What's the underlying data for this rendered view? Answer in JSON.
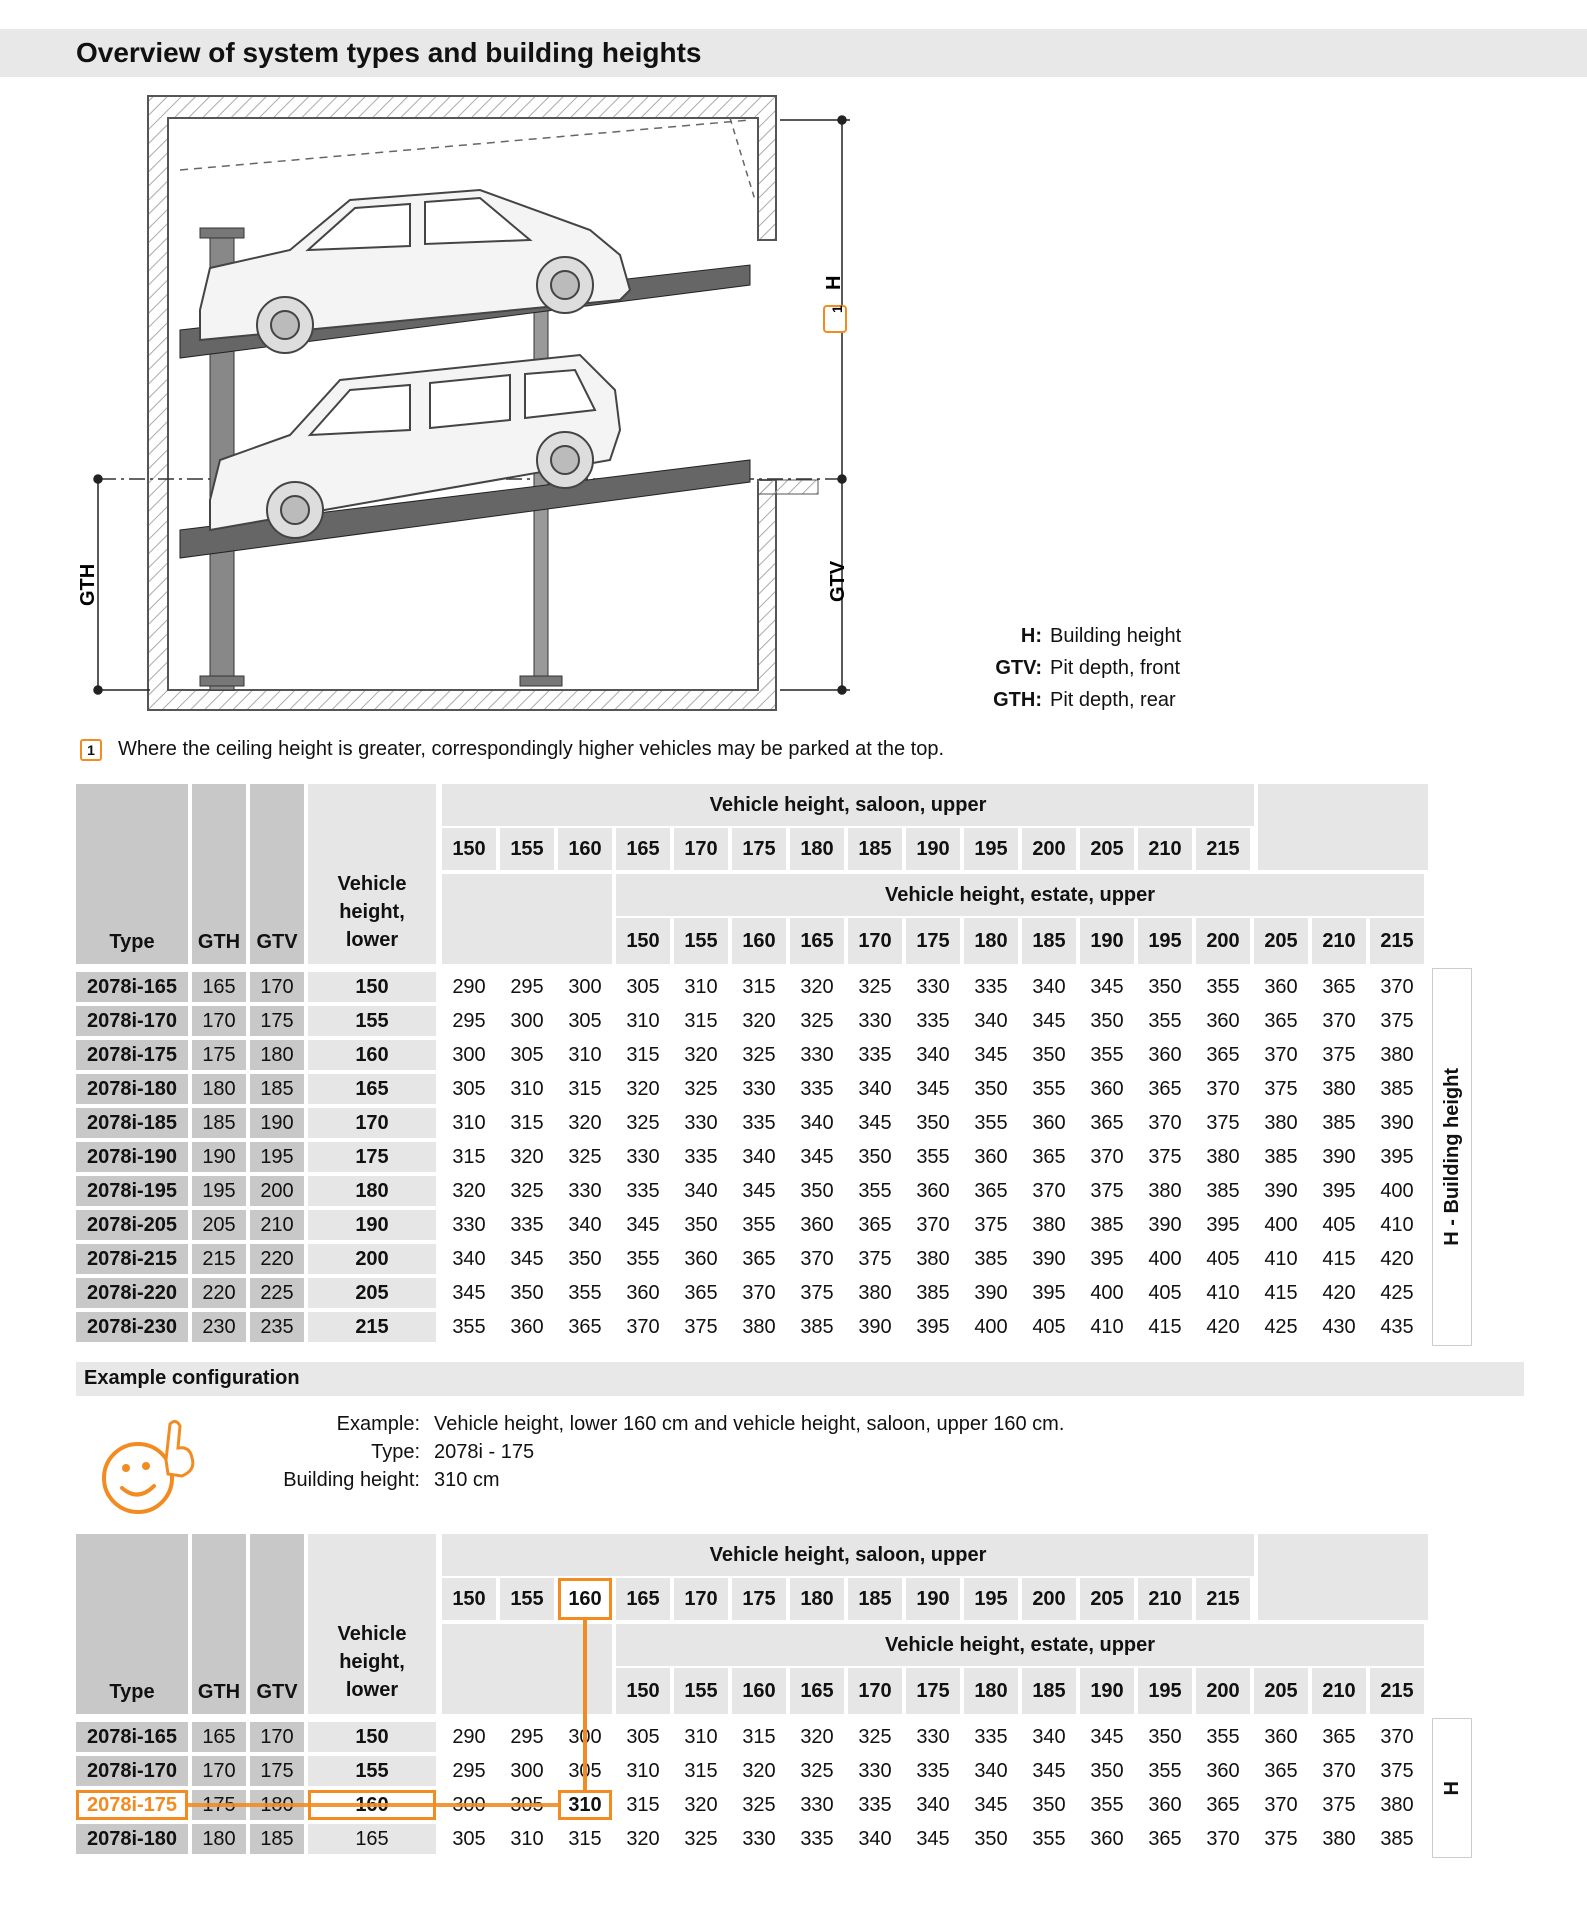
{
  "page_title": "Overview of system types and building heights",
  "diagram": {
    "labels": {
      "h": "H",
      "gtv": "GTV",
      "gth": "GTH",
      "marker": "1"
    }
  },
  "legend": [
    {
      "key": "H:",
      "text": "Building height"
    },
    {
      "key": "GTV:",
      "text": "Pit depth, front"
    },
    {
      "key": "GTH:",
      "text": "Pit depth, rear"
    }
  ],
  "note": {
    "marker": "1",
    "text": "Where the ceiling height is greater, correspondingly higher vehicles may be parked at the top."
  },
  "table1": {
    "headers": {
      "type": "Type",
      "gth": "GTH",
      "gtv": "GTV",
      "lower": "Vehicle height, lower",
      "saloon": "Vehicle height, saloon, upper",
      "estate": "Vehicle height, estate, upper"
    },
    "saloon_cols": [
      "150",
      "155",
      "160",
      "165",
      "170",
      "175",
      "180",
      "185",
      "190",
      "195",
      "200",
      "205",
      "210",
      "215"
    ],
    "estate_cols": [
      "150",
      "155",
      "160",
      "165",
      "170",
      "175",
      "180",
      "185",
      "190",
      "195",
      "200",
      "205",
      "210",
      "215"
    ],
    "side_label": "H - Building height",
    "rows": [
      {
        "type": "2078i-165",
        "gth": "165",
        "gtv": "170",
        "lower": "150",
        "values": [
          "290",
          "295",
          "300",
          "305",
          "310",
          "315",
          "320",
          "325",
          "330",
          "335",
          "340",
          "345",
          "350",
          "355",
          "360",
          "365",
          "370"
        ]
      },
      {
        "type": "2078i-170",
        "gth": "170",
        "gtv": "175",
        "lower": "155",
        "values": [
          "295",
          "300",
          "305",
          "310",
          "315",
          "320",
          "325",
          "330",
          "335",
          "340",
          "345",
          "350",
          "355",
          "360",
          "365",
          "370",
          "375"
        ]
      },
      {
        "type": "2078i-175",
        "gth": "175",
        "gtv": "180",
        "lower": "160",
        "values": [
          "300",
          "305",
          "310",
          "315",
          "320",
          "325",
          "330",
          "335",
          "340",
          "345",
          "350",
          "355",
          "360",
          "365",
          "370",
          "375",
          "380"
        ]
      },
      {
        "type": "2078i-180",
        "gth": "180",
        "gtv": "185",
        "lower": "165",
        "values": [
          "305",
          "310",
          "315",
          "320",
          "325",
          "330",
          "335",
          "340",
          "345",
          "350",
          "355",
          "360",
          "365",
          "370",
          "375",
          "380",
          "385"
        ]
      },
      {
        "type": "2078i-185",
        "gth": "185",
        "gtv": "190",
        "lower": "170",
        "values": [
          "310",
          "315",
          "320",
          "325",
          "330",
          "335",
          "340",
          "345",
          "350",
          "355",
          "360",
          "365",
          "370",
          "375",
          "380",
          "385",
          "390"
        ]
      },
      {
        "type": "2078i-190",
        "gth": "190",
        "gtv": "195",
        "lower": "175",
        "values": [
          "315",
          "320",
          "325",
          "330",
          "335",
          "340",
          "345",
          "350",
          "355",
          "360",
          "365",
          "370",
          "375",
          "380",
          "385",
          "390",
          "395"
        ]
      },
      {
        "type": "2078i-195",
        "gth": "195",
        "gtv": "200",
        "lower": "180",
        "values": [
          "320",
          "325",
          "330",
          "335",
          "340",
          "345",
          "350",
          "355",
          "360",
          "365",
          "370",
          "375",
          "380",
          "385",
          "390",
          "395",
          "400"
        ]
      },
      {
        "type": "2078i-205",
        "gth": "205",
        "gtv": "210",
        "lower": "190",
        "values": [
          "330",
          "335",
          "340",
          "345",
          "350",
          "355",
          "360",
          "365",
          "370",
          "375",
          "380",
          "385",
          "390",
          "395",
          "400",
          "405",
          "410"
        ]
      },
      {
        "type": "2078i-215",
        "gth": "215",
        "gtv": "220",
        "lower": "200",
        "values": [
          "340",
          "345",
          "350",
          "355",
          "360",
          "365",
          "370",
          "375",
          "380",
          "385",
          "390",
          "395",
          "400",
          "405",
          "410",
          "415",
          "420"
        ]
      },
      {
        "type": "2078i-220",
        "gth": "220",
        "gtv": "225",
        "lower": "205",
        "values": [
          "345",
          "350",
          "355",
          "360",
          "365",
          "370",
          "375",
          "380",
          "385",
          "390",
          "395",
          "400",
          "405",
          "410",
          "415",
          "420",
          "425"
        ]
      },
      {
        "type": "2078i-230",
        "gth": "230",
        "gtv": "235",
        "lower": "215",
        "values": [
          "355",
          "360",
          "365",
          "370",
          "375",
          "380",
          "385",
          "390",
          "395",
          "400",
          "405",
          "410",
          "415",
          "420",
          "425",
          "430",
          "435"
        ]
      }
    ]
  },
  "example": {
    "heading": "Example configuration",
    "lines": [
      {
        "key": "Example:",
        "text": "Vehicle height, lower 160 cm and vehicle height, saloon, upper 160 cm."
      },
      {
        "key": "Type:",
        "text": "2078i - 175"
      },
      {
        "key": "Building height:",
        "text": "310 cm"
      }
    ]
  },
  "table2": {
    "side_label": "H",
    "highlight": {
      "row": 2,
      "saloon_col": 2,
      "color": "#f28c22"
    },
    "rows": [
      {
        "type": "2078i-165",
        "gth": "165",
        "gtv": "170",
        "lower": "150",
        "values": [
          "290",
          "295",
          "300",
          "305",
          "310",
          "315",
          "320",
          "325",
          "330",
          "335",
          "340",
          "345",
          "350",
          "355",
          "360",
          "365",
          "370"
        ]
      },
      {
        "type": "2078i-170",
        "gth": "170",
        "gtv": "175",
        "lower": "155",
        "values": [
          "295",
          "300",
          "305",
          "310",
          "315",
          "320",
          "325",
          "330",
          "335",
          "340",
          "345",
          "350",
          "355",
          "360",
          "365",
          "370",
          "375"
        ]
      },
      {
        "type": "2078i-175",
        "gth": "175",
        "gtv": "180",
        "lower": "160",
        "values": [
          "300",
          "305",
          "310",
          "315",
          "320",
          "325",
          "330",
          "335",
          "340",
          "345",
          "350",
          "355",
          "360",
          "365",
          "370",
          "375",
          "380"
        ]
      },
      {
        "type": "2078i-180",
        "gth": "180",
        "gtv": "185",
        "lower": "165",
        "values": [
          "305",
          "310",
          "315",
          "320",
          "325",
          "330",
          "335",
          "340",
          "345",
          "350",
          "355",
          "360",
          "365",
          "370",
          "375",
          "380",
          "385"
        ]
      }
    ]
  },
  "colors": {
    "accent": "#f28c22",
    "header_dark": "#c8c8c8",
    "header_light": "#e6e6e6"
  }
}
